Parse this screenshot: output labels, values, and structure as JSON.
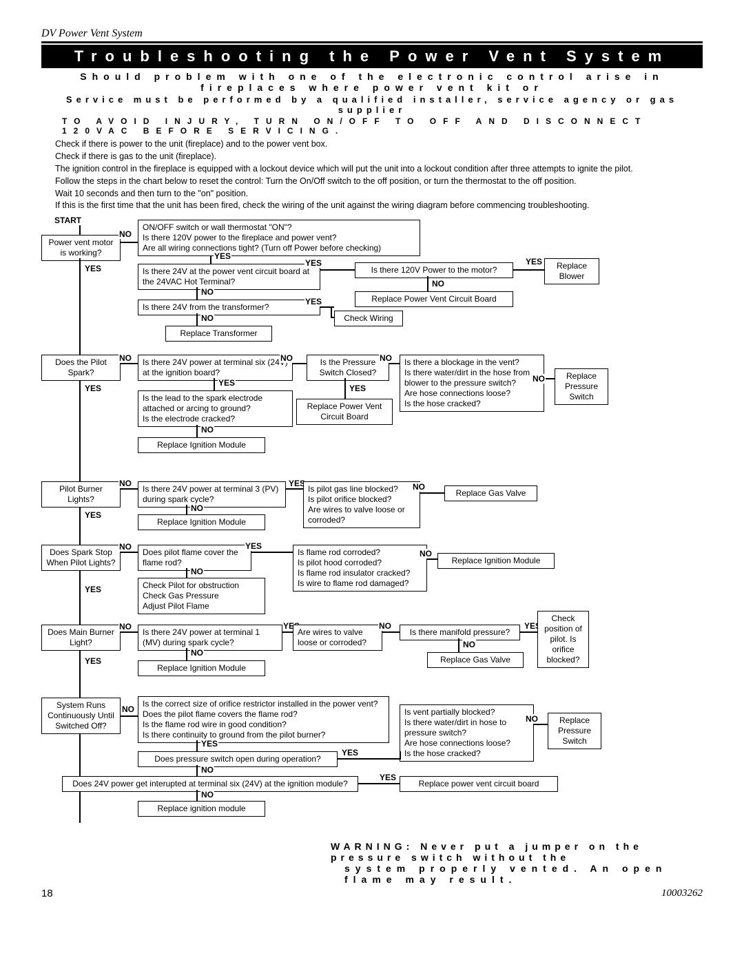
{
  "header": "DV Power Vent System",
  "title": "Troubleshooting the Power Vent System",
  "sub1": "Should problem with one of the electronic control arise in fireplaces where power vent kit or",
  "sub2": "Service must be performed by a qualified installer, service agency or gas supplier",
  "sub3": "TO AVOID INJURY, TURN ON/OFF TO OFF AND DISCONNECT 120VAC BEFORE SERVICING.",
  "intro": [
    "Check if there is power to the unit (fireplace) and to the power vent box.",
    "Check if there is gas to the unit (fireplace).",
    "The ignition control in the fireplace is equipped with a lockout device which will put the unit into a lockout condition after three attempts to ignite the pilot.",
    "Follow the steps in the chart below to reset the control: Turn the On/Off switch to the off position, or turn the thermostat to the off position.",
    "Wait 10 seconds and  then turn to the \"on\" position.",
    "If this is the first time that the unit has been fired, check the wiring of the unit against the wiring diagram before commencing troubleshooting."
  ],
  "boxes": {
    "start": "START",
    "pvm": "Power vent motor is working?",
    "q_onoff": "ON/OFF switch or wall thermostat \"ON\"?\nIs there 120V power to the fireplace and power vent?\nAre all wiring connections tight? (Turn off Power before checking)",
    "q_24v_board": "Is there 24V at the power vent circuit board at the 24VAC Hot Terminal?",
    "q_120v_motor": "Is there 120V Power to the motor?",
    "replace_blower": "Replace Blower",
    "replace_pv_board": "Replace Power Vent Circuit Board",
    "q_24v_xfmr": "Is there 24V from the transformer?",
    "check_wiring": "Check Wiring",
    "replace_xfmr": "Replace Transformer",
    "pilot_spark": "Does the Pilot Spark?",
    "q_24v_t6": "Is there 24V power at terminal six (24V) at the ignition board?",
    "q_pressure_sw": "Is the Pressure Switch Closed?",
    "q_blockage": "Is there a blockage in the vent?\nIs there water/dirt in the hose from blower to the pressure switch?\nAre hose connections loose?\nIs the hose cracked?",
    "replace_press_sw": "Replace Pressure Switch",
    "q_spark_lead": "Is the lead to the spark electrode attached or arcing to ground?\nIs the electrode cracked?",
    "replace_pv_board2": "Replace Power Vent Circuit Board",
    "replace_ign1": "Replace Ignition Module",
    "pilot_lights": "Pilot Burner Lights?",
    "q_24v_t3": "Is there 24V power at terminal 3 (PV) during spark cycle?",
    "q_pilot_gas": "Is pilot gas line blocked?\nIs pilot orifice blocked?\nAre wires to valve loose or corroded?",
    "replace_gas_valve": "Replace Gas Valve",
    "replace_ign2": "Replace Ignition Module",
    "spark_stop": "Does Spark Stop When Pilot Lights?",
    "q_flame_cover": "Does pilot flame cover the flame rod?",
    "q_flame_rod": "Is flame rod corroded?\nIs pilot hood corroded?\nIs flame rod insulator cracked?\nIs wire to flame rod damaged?",
    "replace_ign3": "Replace Ignition Module",
    "check_pilot": "Check Pilot for obstruction\nCheck Gas Pressure\nAdjust Pilot Flame",
    "main_burner": "Does Main Burner Light?",
    "q_24v_t1": "Is there 24V power at terminal 1 (MV) during spark cycle?",
    "q_wires_valve": "Are wires to valve loose or corroded?",
    "q_manifold": "Is there manifold pressure?",
    "check_pos": "Check position of pilot. Is orifice blocked?",
    "replace_gas_valve2": "Replace Gas Valve",
    "replace_ign4": "Replace Ignition Module",
    "sys_cont": "System Runs Continuously Until Switched Off?",
    "q_orifice": "Is the correct size of orifice restrictor installed in the power vent?\nDoes the pilot flame covers the flame rod?\nIs the flame rod wire in good condition?\nIs there continuity to ground from the pilot burner?",
    "q_vent_blocked": "Is vent partially blocked?\nIs there water/dirt in hose to pressure switch?\nAre hose connections loose?\nIs the hose cracked?",
    "replace_press_sw2": "Replace Pressure Switch",
    "q_press_open": "Does pressure switch open during operation?",
    "replace_pv_board3": "Replace power vent circuit board",
    "q_24v_interrupt": "Does 24V power get interupted at terminal six (24V) at the ignition module?",
    "replace_ign5": "Replace ignition module"
  },
  "labels": {
    "yes": "YES",
    "no": "NO"
  },
  "warning1": "WARNING: Never put a jumper on the pressure switch without the",
  "warning2": "system properly vented. An open flame may result.",
  "page": "18",
  "docnum": "10003262"
}
